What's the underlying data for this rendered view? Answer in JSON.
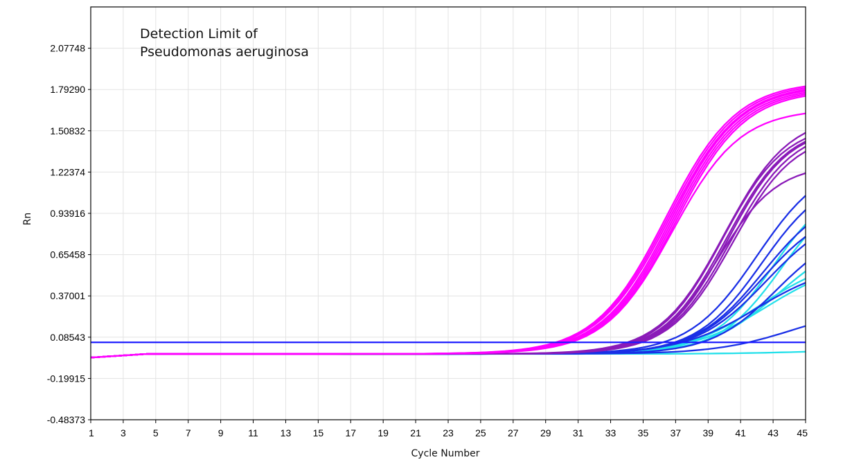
{
  "chart_data": {
    "type": "line",
    "title": "",
    "annotation": [
      "Detection Limit of",
      "Pseudomonas aeruginosa"
    ],
    "xlabel": "Cycle Number",
    "ylabel": "Rn",
    "xlim": [
      1,
      45
    ],
    "ylim": [
      -0.48373,
      2.36206
    ],
    "x_ticks": [
      "1",
      "3",
      "5",
      "7",
      "9",
      "11",
      "13",
      "15",
      "17",
      "19",
      "21",
      "23",
      "25",
      "27",
      "29",
      "31",
      "33",
      "35",
      "37",
      "39",
      "41",
      "43",
      "45"
    ],
    "y_ticks": [
      2.07748,
      1.7929,
      1.50832,
      1.22374,
      0.93916,
      0.65458,
      0.37001,
      0.08543,
      -0.19915,
      -0.48373
    ],
    "y_tick_labels": [
      "2.07748",
      "1.79290",
      "1.50832",
      "1.22374",
      "0.93916",
      "0.65458",
      "0.37001",
      "0.08543",
      "-0.19915",
      "-0.48373"
    ],
    "grid": true,
    "threshold": {
      "value": 0.05,
      "color": "#1a1aff"
    },
    "colors": {
      "magenta": "#ff00ff",
      "purple": "#8a1ab8",
      "blue": "#1a2fe6",
      "cyan": "#22e0ea"
    },
    "series": [
      {
        "group": "magenta",
        "baseline": -0.03,
        "max": 1.85,
        "midpoint": 36.4,
        "slope": 0.46
      },
      {
        "group": "magenta",
        "baseline": -0.03,
        "max": 1.84,
        "midpoint": 36.5,
        "slope": 0.46
      },
      {
        "group": "magenta",
        "baseline": -0.03,
        "max": 1.83,
        "midpoint": 36.6,
        "slope": 0.46
      },
      {
        "group": "magenta",
        "baseline": -0.03,
        "max": 1.82,
        "midpoint": 36.7,
        "slope": 0.47
      },
      {
        "group": "magenta",
        "baseline": -0.03,
        "max": 1.81,
        "midpoint": 36.8,
        "slope": 0.47
      },
      {
        "group": "magenta",
        "baseline": -0.03,
        "max": 1.8,
        "midpoint": 36.9,
        "slope": 0.47
      },
      {
        "group": "magenta",
        "baseline": -0.03,
        "max": 1.79,
        "midpoint": 37.0,
        "slope": 0.47
      },
      {
        "group": "magenta",
        "baseline": -0.03,
        "max": 1.66,
        "midpoint": 36.8,
        "slope": 0.48
      },
      {
        "group": "purple",
        "baseline": -0.03,
        "max": 1.62,
        "midpoint": 40.0,
        "slope": 0.5
      },
      {
        "group": "purple",
        "baseline": -0.03,
        "max": 1.56,
        "midpoint": 39.9,
        "slope": 0.52
      },
      {
        "group": "purple",
        "baseline": -0.03,
        "max": 1.55,
        "midpoint": 40.1,
        "slope": 0.52
      },
      {
        "group": "purple",
        "baseline": -0.03,
        "max": 1.54,
        "midpoint": 40.2,
        "slope": 0.53
      },
      {
        "group": "purple",
        "baseline": -0.03,
        "max": 1.53,
        "midpoint": 40.4,
        "slope": 0.52
      },
      {
        "group": "purple",
        "baseline": -0.03,
        "max": 1.5,
        "midpoint": 40.5,
        "slope": 0.52
      },
      {
        "group": "purple",
        "baseline": -0.03,
        "max": 1.28,
        "midpoint": 39.6,
        "slope": 0.55
      },
      {
        "group": "blue",
        "baseline": -0.03,
        "max": 1.32,
        "midpoint": 42.0,
        "slope": 0.48
      },
      {
        "group": "blue",
        "baseline": -0.03,
        "max": 1.22,
        "midpoint": 42.3,
        "slope": 0.5
      },
      {
        "group": "blue",
        "baseline": -0.03,
        "max": 1.1,
        "midpoint": 42.4,
        "slope": 0.48
      },
      {
        "group": "blue",
        "baseline": -0.03,
        "max": 1.0,
        "midpoint": 42.3,
        "slope": 0.48
      },
      {
        "group": "blue",
        "baseline": -0.03,
        "max": 0.98,
        "midpoint": 42.6,
        "slope": 0.46
      },
      {
        "group": "blue",
        "baseline": -0.03,
        "max": 0.85,
        "midpoint": 43.2,
        "slope": 0.5
      },
      {
        "group": "blue",
        "baseline": -0.03,
        "max": 0.6,
        "midpoint": 42.0,
        "slope": 0.42
      },
      {
        "group": "blue",
        "baseline": -0.03,
        "max": 0.3,
        "midpoint": 44.2,
        "slope": 0.42
      },
      {
        "group": "cyan",
        "baseline": -0.03,
        "max": 1.18,
        "midpoint": 43.0,
        "slope": 0.52
      },
      {
        "group": "cyan",
        "baseline": -0.03,
        "max": 1.15,
        "midpoint": 43.5,
        "slope": 0.52
      },
      {
        "group": "cyan",
        "baseline": -0.03,
        "max": 0.8,
        "midpoint": 43.3,
        "slope": 0.46
      },
      {
        "group": "cyan",
        "baseline": -0.03,
        "max": 0.64,
        "midpoint": 42.2,
        "slope": 0.44
      },
      {
        "group": "cyan",
        "baseline": -0.03,
        "max": 0.62,
        "midpoint": 42.6,
        "slope": 0.42
      },
      {
        "group": "cyan",
        "baseline": -0.03,
        "max": 0.0,
        "midpoint": 45.0,
        "slope": 0.4
      }
    ]
  }
}
